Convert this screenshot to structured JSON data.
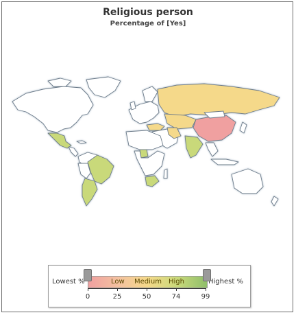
{
  "title": "Religious person",
  "subtitle": "Percentage of [Yes]",
  "legend": {
    "low_label": "Lowest %",
    "high_label": "Highest %",
    "band_labels": [
      "Low",
      "Medium",
      "High"
    ],
    "ticks": [
      "0",
      "25",
      "50",
      "74",
      "99"
    ],
    "colors": {
      "low": "#f0a0a0",
      "medium": "#f5d98a",
      "high": "#8fbf6a",
      "no_data": "#ffffff",
      "border": "#6d7b8a"
    }
  },
  "map_regions": [
    {
      "name": "Russia",
      "band": "Medium"
    },
    {
      "name": "China",
      "band": "Low"
    },
    {
      "name": "Mexico",
      "band": "High"
    },
    {
      "name": "Brazil",
      "band": "High"
    },
    {
      "name": "Argentina",
      "band": "High"
    },
    {
      "name": "Turkey",
      "band": "Medium"
    },
    {
      "name": "India",
      "band": "High"
    },
    {
      "name": "South Africa",
      "band": "High"
    },
    {
      "name": "Nigeria",
      "band": "High"
    },
    {
      "name": "Iran",
      "band": "Medium"
    }
  ]
}
